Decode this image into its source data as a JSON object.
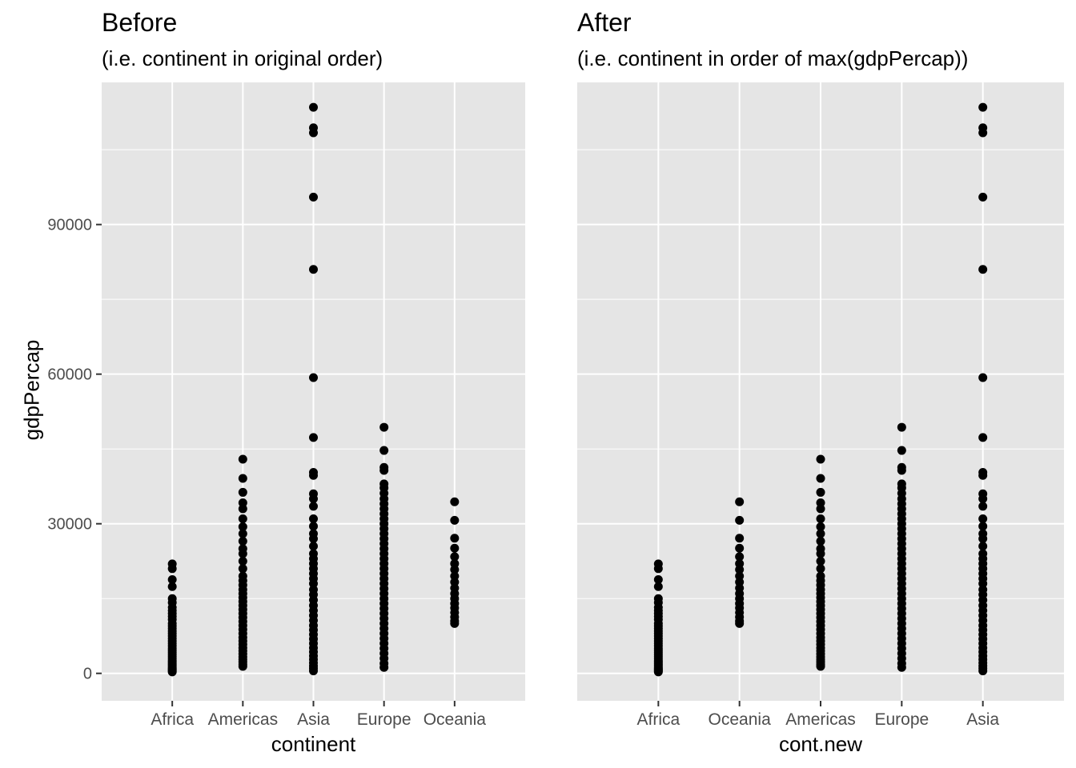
{
  "y_axis_title": "gdpPercap",
  "panels": [
    {
      "title": "Before",
      "subtitle": "(i.e. continent in original order)",
      "x_axis_title": "continent",
      "show_y_labels": true,
      "categories": [
        "Africa",
        "Americas",
        "Asia",
        "Europe",
        "Oceania"
      ]
    },
    {
      "title": "After",
      "subtitle": "(i.e. continent in order of max(gdpPercap))",
      "x_axis_title": "cont.new",
      "show_y_labels": false,
      "categories": [
        "Africa",
        "Oceania",
        "Americas",
        "Europe",
        "Asia"
      ]
    }
  ],
  "colors": {
    "panel_bg": "#e5e5e5",
    "grid": "#ffffff",
    "point": "#000000",
    "tick_text": "#4d4d4d"
  },
  "chart_data": [
    {
      "type": "scatter",
      "title": "Before",
      "subtitle": "(i.e. continent in original order)",
      "xlabel": "continent",
      "ylabel": "gdpPercap",
      "categories": [
        "Africa",
        "Americas",
        "Asia",
        "Europe",
        "Oceania"
      ],
      "ylim": [
        -5500,
        118500
      ],
      "yticks": [
        0,
        30000,
        60000,
        90000
      ],
      "grid": true,
      "points_by_category": {
        "Africa": [
          21950,
          21000,
          18800,
          17400,
          15000,
          14200,
          13200,
          12600,
          12000,
          11400,
          10800,
          10000,
          9500,
          9000,
          8500,
          8000,
          7500,
          7000,
          6500,
          6000,
          5500,
          5000,
          4600,
          4200,
          3800,
          3400,
          3000,
          2600,
          2300,
          2000,
          1700,
          1400,
          1100,
          900,
          700,
          500,
          300
        ],
        "Americas": [
          42950,
          39100,
          36300,
          34200,
          33000,
          31000,
          29400,
          28000,
          26500,
          25000,
          24000,
          22500,
          21000,
          19500,
          18600,
          17700,
          16800,
          16000,
          15200,
          14400,
          13600,
          12800,
          12000,
          11200,
          10400,
          9600,
          8800,
          8000,
          7200,
          6500,
          5800,
          5100,
          4500,
          3900,
          3300,
          2800,
          2300,
          1800,
          1400
        ],
        "Asia": [
          113500,
          109400,
          108400,
          95500,
          81000,
          59300,
          47300,
          40300,
          39700,
          36000,
          35000,
          33500,
          31000,
          29500,
          28000,
          27000,
          25500,
          24000,
          23000,
          22000,
          21000,
          20000,
          19000,
          18000,
          16800,
          15800,
          14700,
          13600,
          12600,
          11600,
          10600,
          9600,
          8700,
          7800,
          6900,
          6000,
          5100,
          4300,
          3500,
          2800,
          2100,
          1500,
          1000,
          500
        ],
        "Europe": [
          49350,
          44700,
          41300,
          40700,
          38000,
          37200,
          36100,
          35000,
          34000,
          33000,
          32000,
          31000,
          30000,
          29000,
          28000,
          27000,
          26000,
          25000,
          24000,
          23000,
          22000,
          21000,
          20000,
          19000,
          18000,
          17000,
          16000,
          15000,
          14000,
          13000,
          12000,
          11000,
          10000,
          9000,
          8000,
          7000,
          6000,
          5000,
          4000,
          3000,
          2000,
          1200
        ],
        "Oceania": [
          34400,
          30700,
          27100,
          25100,
          23400,
          22000,
          20800,
          19500,
          18300,
          17100,
          16000,
          15000,
          14000,
          13100,
          12200,
          11300,
          10500,
          10000
        ]
      }
    },
    {
      "type": "scatter",
      "title": "After",
      "subtitle": "(i.e. continent in order of max(gdpPercap))",
      "xlabel": "cont.new",
      "ylabel": "",
      "categories": [
        "Africa",
        "Oceania",
        "Americas",
        "Europe",
        "Asia"
      ],
      "ylim": [
        -5500,
        118500
      ],
      "yticks": [
        0,
        30000,
        60000,
        90000
      ],
      "grid": true,
      "points_by_category": {
        "Africa": [
          21950,
          21000,
          18800,
          17400,
          15000,
          14200,
          13200,
          12600,
          12000,
          11400,
          10800,
          10000,
          9500,
          9000,
          8500,
          8000,
          7500,
          7000,
          6500,
          6000,
          5500,
          5000,
          4600,
          4200,
          3800,
          3400,
          3000,
          2600,
          2300,
          2000,
          1700,
          1400,
          1100,
          900,
          700,
          500,
          300
        ],
        "Oceania": [
          34400,
          30700,
          27100,
          25100,
          23400,
          22000,
          20800,
          19500,
          18300,
          17100,
          16000,
          15000,
          14000,
          13100,
          12200,
          11300,
          10500,
          10000
        ],
        "Americas": [
          42950,
          39100,
          36300,
          34200,
          33000,
          31000,
          29400,
          28000,
          26500,
          25000,
          24000,
          22500,
          21000,
          19500,
          18600,
          17700,
          16800,
          16000,
          15200,
          14400,
          13600,
          12800,
          12000,
          11200,
          10400,
          9600,
          8800,
          8000,
          7200,
          6500,
          5800,
          5100,
          4500,
          3900,
          3300,
          2800,
          2300,
          1800,
          1400
        ],
        "Europe": [
          49350,
          44700,
          41300,
          40700,
          38000,
          37200,
          36100,
          35000,
          34000,
          33000,
          32000,
          31000,
          30000,
          29000,
          28000,
          27000,
          26000,
          25000,
          24000,
          23000,
          22000,
          21000,
          20000,
          19000,
          18000,
          17000,
          16000,
          15000,
          14000,
          13000,
          12000,
          11000,
          10000,
          9000,
          8000,
          7000,
          6000,
          5000,
          4000,
          3000,
          2000,
          1200
        ],
        "Asia": [
          113500,
          109400,
          108400,
          95500,
          81000,
          59300,
          47300,
          40300,
          39700,
          36000,
          35000,
          33500,
          31000,
          29500,
          28000,
          27000,
          25500,
          24000,
          23000,
          22000,
          21000,
          20000,
          19000,
          18000,
          16800,
          15800,
          14700,
          13600,
          12600,
          11600,
          10600,
          9600,
          8700,
          7800,
          6900,
          6000,
          5100,
          4300,
          3500,
          2800,
          2100,
          1500,
          1000,
          500
        ]
      }
    }
  ]
}
